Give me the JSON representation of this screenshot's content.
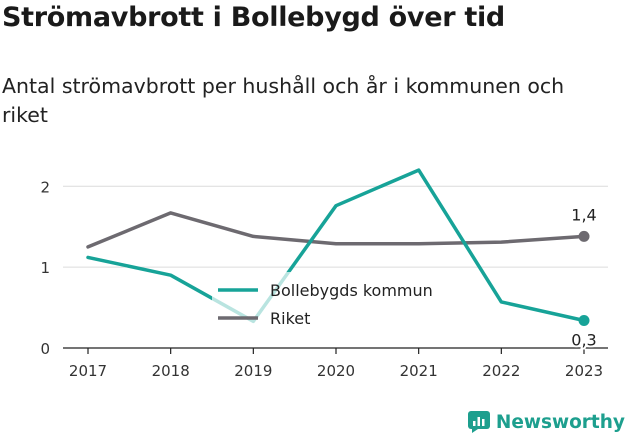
{
  "title": "Strömavbrott i Bollebygd över tid",
  "subtitle": "Antal strömavbrott per hushåll och år i kommunen och riket",
  "brand": {
    "name": "Newsworthy",
    "icon": "newsworthy-logo-icon",
    "color": "#1d9f8e"
  },
  "chart_data": {
    "type": "line",
    "x": [
      "2017",
      "2018",
      "2019",
      "2020",
      "2021",
      "2022",
      "2023"
    ],
    "series": [
      {
        "name": "Bollebygds kommun",
        "color": "#17a398",
        "values": [
          1.12,
          0.9,
          0.33,
          1.76,
          2.2,
          0.57,
          0.34
        ],
        "end_label": "0,3"
      },
      {
        "name": "Riket",
        "color": "#6d6a70",
        "values": [
          1.25,
          1.67,
          1.38,
          1.29,
          1.29,
          1.31,
          1.38
        ],
        "end_label": "1,4"
      }
    ],
    "ylim": [
      0,
      2.3
    ],
    "yticks": [
      "0",
      "1",
      "2"
    ],
    "grid": true,
    "legend": "center"
  }
}
